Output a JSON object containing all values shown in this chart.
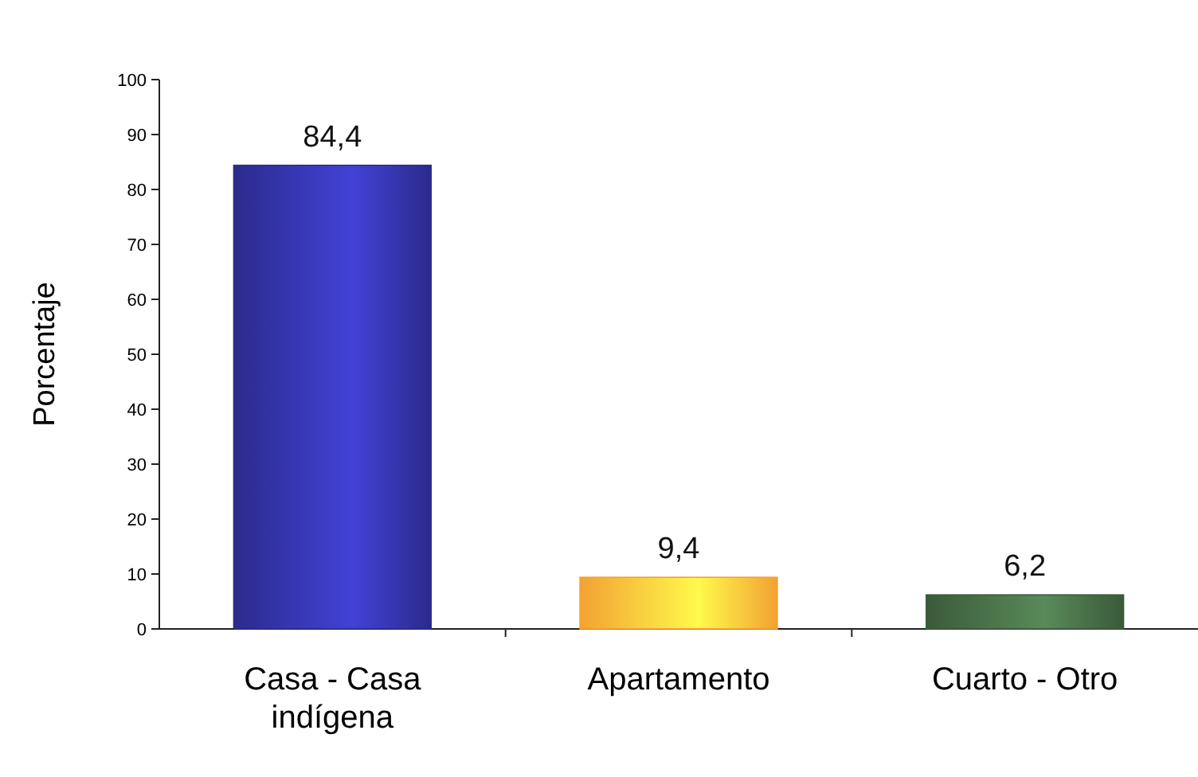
{
  "chart_data": {
    "type": "bar",
    "ylabel": "Porcentaje",
    "categories": [
      "Casa - Casa indígena",
      "Apartamento",
      "Cuarto - Otro"
    ],
    "values": [
      84.4,
      9.4,
      6.2
    ],
    "colors": [
      "#2b2b8c",
      "#f2a232",
      "#3a5a3a"
    ],
    "value_labels": [
      "84,4",
      "9,4",
      "6,2"
    ],
    "ylim": [
      0,
      100
    ],
    "yticks": [
      0,
      10,
      20,
      30,
      40,
      50,
      60,
      70,
      80,
      90,
      100
    ],
    "grid": false
  }
}
